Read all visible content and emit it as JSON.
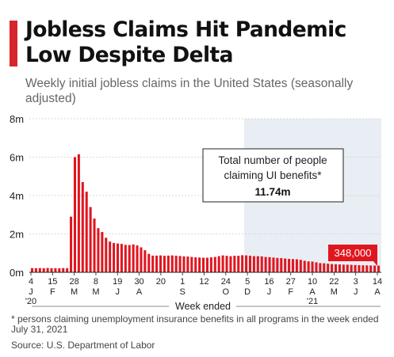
{
  "header": {
    "title": "Jobless Claims Hit Pandemic Low Despite Delta",
    "subtitle": "Weekly initial jobless claims in the United States (seasonally adjusted)"
  },
  "footer": {
    "footnote": "* persons claiming unemployment insurance benefits in all programs in the week ended July 31, 2021",
    "source": "Source: U.S. Department of Labor"
  },
  "colors": {
    "accent": "#d7262b",
    "bar": "#e0161f",
    "shade": "#e9eef4",
    "grid": "#d0d0d0"
  },
  "chart_data": {
    "type": "bar",
    "title": "Jobless Claims Hit Pandemic Low Despite Delta",
    "subtitle": "Weekly initial jobless claims in the United States (seasonally adjusted)",
    "xlabel": "Week ended",
    "ylabel": "",
    "ylim": [
      0,
      8000000
    ],
    "y_ticks": [
      "0m",
      "2m",
      "4m",
      "6m",
      "8m"
    ],
    "grid": true,
    "x_tick_days": [
      "4",
      "15",
      "28",
      "8",
      "19",
      "30",
      "20",
      "1",
      "12",
      "24",
      "5",
      "16",
      "27",
      "10",
      "22",
      "3",
      "14"
    ],
    "x_tick_months": [
      "J",
      "F",
      "M",
      "M",
      "J",
      "A",
      "S",
      "O",
      "D",
      "J",
      "F",
      "A",
      "M",
      "J",
      "A"
    ],
    "x_tick_years": [
      "'20",
      "'21"
    ],
    "annotation": {
      "line1": "Total number of people",
      "line2": "claiming UI benefits*",
      "value": "11.74m"
    },
    "last_value_label": "348,000",
    "series": [
      {
        "values": [
          220000,
          215000,
          220000,
          215000,
          225000,
          215000,
          215000,
          210000,
          220000,
          215000,
          2900000,
          6000000,
          6150000,
          4700000,
          4200000,
          3400000,
          2800000,
          2300000,
          2100000,
          1800000,
          1600000,
          1530000,
          1500000,
          1480000,
          1430000,
          1420000,
          1450000,
          1400000,
          1300000,
          1150000,
          960000,
          870000,
          870000,
          880000,
          860000,
          870000,
          880000,
          860000,
          850000,
          830000,
          820000,
          800000,
          780000,
          770000,
          760000,
          760000,
          780000,
          800000,
          840000,
          880000,
          860000,
          840000,
          860000,
          860000,
          890000,
          880000,
          860000,
          840000,
          840000,
          830000,
          800000,
          790000,
          770000,
          750000,
          740000,
          720000,
          700000,
          690000,
          680000,
          650000,
          600000,
          570000,
          560000,
          520000,
          480000,
          470000,
          450000,
          430000,
          420000,
          410000,
          400000,
          395000,
          390000,
          380000,
          373000,
          365000,
          360000,
          355000,
          350000,
          348000
        ]
      }
    ]
  }
}
